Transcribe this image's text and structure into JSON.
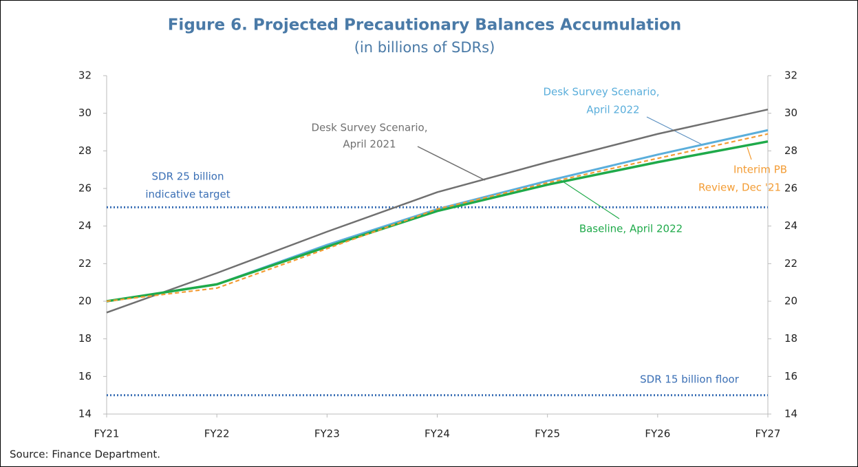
{
  "chart_data": {
    "type": "line",
    "title": "Figure 6. Projected Precautionary Balances Accumulation",
    "subtitle": "(in billions of SDRs)",
    "categories": [
      "FY21",
      "FY22",
      "FY23",
      "FY24",
      "FY25",
      "FY26",
      "FY27"
    ],
    "series": [
      {
        "name": [
          "Desk Survey Scenario,",
          "April 2021"
        ],
        "color": "#707070",
        "values": [
          19.4,
          21.5,
          23.7,
          25.8,
          27.4,
          28.9,
          30.2
        ]
      },
      {
        "name": [
          "Desk Survey Scenario,",
          "April 2022"
        ],
        "color": "#5aaedb",
        "values": [
          20.0,
          20.9,
          23.0,
          24.9,
          26.4,
          27.8,
          29.1
        ]
      },
      {
        "name": [
          "Baseline, April 2022"
        ],
        "color": "#1faa4a",
        "values": [
          20.0,
          20.9,
          22.9,
          24.8,
          26.2,
          27.4,
          28.5
        ]
      },
      {
        "name": [
          "Interim PB",
          "Review, Dec '21"
        ],
        "color": "#f39c34",
        "dashed": true,
        "values": [
          20.0,
          20.7,
          22.8,
          24.9,
          26.3,
          27.6,
          28.9
        ]
      }
    ],
    "reference_lines": [
      {
        "value": 25,
        "color": "#3a6fb5",
        "label": [
          "SDR 25 billion",
          "indicative target"
        ]
      },
      {
        "value": 15,
        "color": "#3a6fb5",
        "label": [
          "SDR 15 billion floor"
        ]
      }
    ],
    "ylim": [
      14,
      32
    ],
    "yticks": [
      14,
      16,
      18,
      20,
      22,
      24,
      26,
      28,
      30,
      32
    ],
    "y2lim": [
      14,
      32
    ],
    "y2ticks": [
      14,
      16,
      18,
      20,
      22,
      24,
      26,
      28,
      30,
      32
    ],
    "source": "Source: Finance Department."
  }
}
